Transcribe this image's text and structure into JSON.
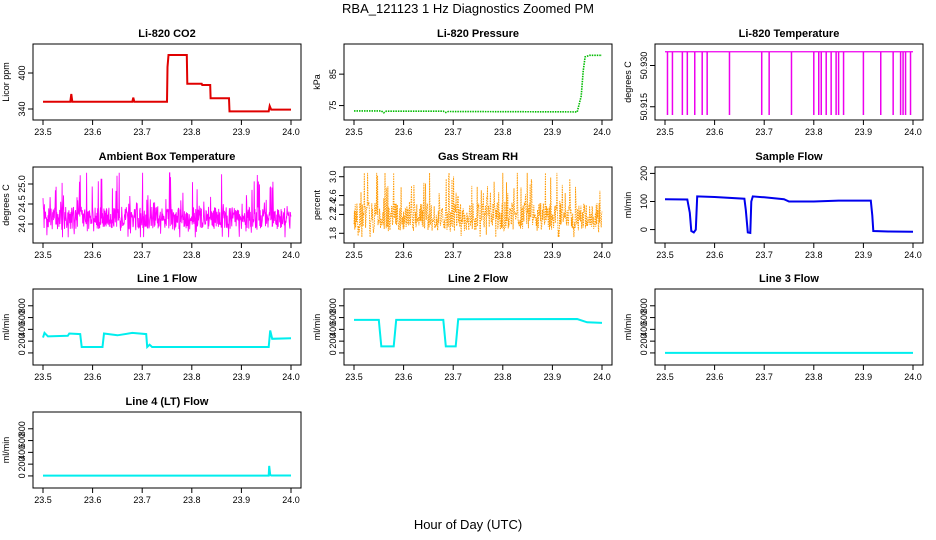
{
  "figure": {
    "title": "RBA_121123  1 Hz Diagnostics Zoomed PM",
    "xlabel": "Hour of Day (UTC)"
  },
  "colors": {
    "co2": "#e00000",
    "pressure": "#00bb00",
    "temperature": "#ee00ee",
    "ambient": "#ff00ff",
    "rh": "#ff9900",
    "sample": "#0000ee",
    "flow": "#00eeee",
    "axis": "#000000"
  },
  "chart_data": [
    {
      "id": "li820-co2",
      "type": "line",
      "title": "Li-820 CO2",
      "ylabel": "Licor ppm",
      "xlim": [
        23.5,
        24.0
      ],
      "ylim": [
        330,
        440
      ],
      "xticks": [
        "23.5",
        "23.6",
        "23.7",
        "23.8",
        "23.9",
        "24.0"
      ],
      "yticks": [
        {
          "v": 340,
          "label": "340"
        },
        {
          "v": 400,
          "label": "400"
        }
      ],
      "color_key": "co2",
      "style": "step",
      "series": [
        {
          "name": "CO2",
          "points": [
            [
              23.5,
              352
            ],
            [
              23.555,
              352
            ],
            [
              23.557,
              365
            ],
            [
              23.559,
              352
            ],
            [
              23.68,
              352
            ],
            [
              23.682,
              359
            ],
            [
              23.684,
              352
            ],
            [
              23.75,
              352
            ],
            [
              23.751,
              410
            ],
            [
              23.753,
              430
            ],
            [
              23.79,
              430
            ],
            [
              23.791,
              382
            ],
            [
              23.82,
              382
            ],
            [
              23.821,
              380
            ],
            [
              23.837,
              380
            ],
            [
              23.838,
              358
            ],
            [
              23.875,
              358
            ],
            [
              23.876,
              336
            ],
            [
              23.955,
              336
            ],
            [
              23.957,
              345
            ],
            [
              23.96,
              339
            ],
            [
              24.0,
              339
            ]
          ]
        }
      ]
    },
    {
      "id": "li820-pressure",
      "type": "line",
      "title": "Li-820 Pressure",
      "ylabel": "kPa",
      "xlim": [
        23.5,
        24.0
      ],
      "ylim": [
        72,
        93
      ],
      "xticks": [
        "23.5",
        "23.6",
        "23.7",
        "23.8",
        "23.9",
        "24.0"
      ],
      "yticks": [
        {
          "v": 75,
          "label": "75"
        },
        {
          "v": 85,
          "label": "85"
        }
      ],
      "color_key": "pressure",
      "style": "dotted",
      "series": [
        {
          "name": "Pressure",
          "points": [
            [
              23.5,
              73.3
            ],
            [
              23.555,
              73.3
            ],
            [
              23.56,
              72.7
            ],
            [
              23.565,
              73.2
            ],
            [
              23.68,
              73.2
            ],
            [
              23.685,
              72.8
            ],
            [
              23.69,
              73.1
            ],
            [
              23.95,
              73.0
            ],
            [
              23.958,
              78
            ],
            [
              23.962,
              86
            ],
            [
              23.966,
              90.5
            ],
            [
              23.975,
              91.0
            ],
            [
              24.0,
              91.0
            ]
          ]
        }
      ]
    },
    {
      "id": "li820-temperature",
      "type": "line",
      "title": "Li-820 Temperature",
      "ylabel": "degrees C",
      "xlim": [
        23.5,
        24.0
      ],
      "ylim": [
        50.912,
        50.936
      ],
      "xticks": [
        "23.5",
        "23.6",
        "23.7",
        "23.8",
        "23.9",
        "24.0"
      ],
      "yticks": [
        {
          "v": 50.915,
          "label": "50.915"
        },
        {
          "v": 50.93,
          "label": "50.930"
        }
      ],
      "color_key": "temperature",
      "style": "spikes",
      "baseline": 50.935,
      "dip": 50.912,
      "spikes": [
        23.505,
        23.515,
        23.535,
        23.545,
        23.56,
        23.575,
        23.585,
        23.63,
        23.695,
        23.71,
        23.755,
        23.8,
        23.81,
        23.815,
        23.825,
        23.835,
        23.845,
        23.85,
        23.86,
        23.9,
        23.935,
        23.96,
        23.975,
        23.98,
        23.985,
        23.995
      ],
      "series": []
    },
    {
      "id": "ambient-box-temperature",
      "type": "line",
      "title": "Ambient Box Temperature",
      "ylabel": "degrees C",
      "xlim": [
        23.5,
        24.0
      ],
      "ylim": [
        23.65,
        25.3
      ],
      "xticks": [
        "23.5",
        "23.6",
        "23.7",
        "23.8",
        "23.9",
        "24.0"
      ],
      "yticks": [
        {
          "v": 24.0,
          "label": "24.0"
        },
        {
          "v": 24.5,
          "label": "24.5"
        },
        {
          "v": 25.0,
          "label": "25.0"
        }
      ],
      "color_key": "ambient",
      "style": "noise",
      "noise": {
        "base": 24.15,
        "amp": 0.28,
        "spike": 0.95,
        "seed": 7,
        "n": 700
      },
      "series": []
    },
    {
      "id": "gas-stream-rh",
      "type": "line",
      "title": "Gas Stream RH",
      "ylabel": "percent",
      "xlim": [
        23.5,
        24.0
      ],
      "ylim": [
        1.7,
        3.1
      ],
      "xticks": [
        "23.5",
        "23.6",
        "23.7",
        "23.8",
        "23.9",
        "24.0"
      ],
      "yticks": [
        {
          "v": 1.8,
          "label": "1.8"
        },
        {
          "v": 2.2,
          "label": "2.2"
        },
        {
          "v": 2.4,
          "label": "2.4"
        },
        {
          "v": 2.6,
          "label": "2.6"
        },
        {
          "v": 3.0,
          "label": "3.0"
        }
      ],
      "color_key": "rh",
      "style": "noise",
      "noise": {
        "base": 2.15,
        "amp": 0.3,
        "spike": 0.85,
        "seed": 13,
        "n": 600
      },
      "series": []
    },
    {
      "id": "sample-flow",
      "type": "line",
      "title": "Sample Flow",
      "ylabel": "ml/min",
      "xlim": [
        23.5,
        24.0
      ],
      "ylim": [
        -30,
        205
      ],
      "xticks": [
        "23.5",
        "23.6",
        "23.7",
        "23.8",
        "23.9",
        "24.0"
      ],
      "yticks": [
        {
          "v": 0,
          "label": "0"
        },
        {
          "v": 100,
          "label": "100"
        },
        {
          "v": 200,
          "label": "200"
        }
      ],
      "color_key": "sample",
      "style": "step",
      "series": [
        {
          "name": "Sample",
          "points": [
            [
              23.5,
              108
            ],
            [
              23.545,
              107
            ],
            [
              23.55,
              60
            ],
            [
              23.553,
              -5
            ],
            [
              23.558,
              -10
            ],
            [
              23.562,
              0
            ],
            [
              23.565,
              118
            ],
            [
              23.6,
              116
            ],
            [
              23.66,
              110
            ],
            [
              23.663,
              70
            ],
            [
              23.667,
              -10
            ],
            [
              23.672,
              -12
            ],
            [
              23.674,
              100
            ],
            [
              23.677,
              118
            ],
            [
              23.7,
              115
            ],
            [
              23.74,
              108
            ],
            [
              23.75,
              100
            ],
            [
              23.8,
              100
            ],
            [
              23.85,
              103
            ],
            [
              23.915,
              103
            ],
            [
              23.918,
              50
            ],
            [
              23.92,
              -5
            ],
            [
              23.95,
              -7
            ],
            [
              24.0,
              -8
            ]
          ]
        }
      ]
    },
    {
      "id": "line-1-flow",
      "type": "line",
      "title": "Line 1 Flow",
      "ylabel": "ml/min",
      "xlim": [
        23.5,
        24.0
      ],
      "ylim": [
        -120,
        1000
      ],
      "xticks": [
        "23.5",
        "23.6",
        "23.7",
        "23.8",
        "23.9",
        "24.0"
      ],
      "yticks": [
        {
          "v": 0,
          "label": "0"
        },
        {
          "v": 200,
          "label": "200"
        },
        {
          "v": 400,
          "label": "400"
        },
        {
          "v": 600,
          "label": "600"
        },
        {
          "v": 800,
          "label": "800"
        }
      ],
      "color_key": "flow",
      "style": "step",
      "series": [
        {
          "name": "Line 1",
          "points": [
            [
              23.5,
              260
            ],
            [
              23.503,
              340
            ],
            [
              23.51,
              280
            ],
            [
              23.55,
              290
            ],
            [
              23.553,
              330
            ],
            [
              23.575,
              320
            ],
            [
              23.578,
              100
            ],
            [
              23.62,
              100
            ],
            [
              23.623,
              330
            ],
            [
              23.65,
              300
            ],
            [
              23.68,
              340
            ],
            [
              23.708,
              320
            ],
            [
              23.71,
              100
            ],
            [
              23.715,
              140
            ],
            [
              23.72,
              100
            ],
            [
              23.955,
              100
            ],
            [
              23.958,
              380
            ],
            [
              23.962,
              240
            ],
            [
              24.0,
              250
            ]
          ]
        }
      ]
    },
    {
      "id": "line-2-flow",
      "type": "line",
      "title": "Line 2 Flow",
      "ylabel": "ml/min",
      "xlim": [
        23.5,
        24.0
      ],
      "ylim": [
        -120,
        1000
      ],
      "xticks": [
        "23.5",
        "23.6",
        "23.7",
        "23.8",
        "23.9",
        "24.0"
      ],
      "yticks": [
        {
          "v": 0,
          "label": "0"
        },
        {
          "v": 200,
          "label": "200"
        },
        {
          "v": 400,
          "label": "400"
        },
        {
          "v": 600,
          "label": "600"
        },
        {
          "v": 800,
          "label": "800"
        }
      ],
      "color_key": "flow",
      "style": "step",
      "series": [
        {
          "name": "Line 2",
          "points": [
            [
              23.5,
              560
            ],
            [
              23.55,
              560
            ],
            [
              23.555,
              110
            ],
            [
              23.58,
              110
            ],
            [
              23.585,
              560
            ],
            [
              23.68,
              560
            ],
            [
              23.685,
              110
            ],
            [
              23.705,
              110
            ],
            [
              23.71,
              570
            ],
            [
              23.95,
              575
            ],
            [
              23.97,
              520
            ],
            [
              24.0,
              510
            ]
          ]
        }
      ]
    },
    {
      "id": "line-3-flow",
      "type": "line",
      "title": "Line 3 Flow",
      "ylabel": "ml/min",
      "xlim": [
        23.5,
        24.0
      ],
      "ylim": [
        -120,
        1000
      ],
      "xticks": [
        "23.5",
        "23.6",
        "23.7",
        "23.8",
        "23.9",
        "24.0"
      ],
      "yticks": [
        {
          "v": 0,
          "label": "0"
        },
        {
          "v": 200,
          "label": "200"
        },
        {
          "v": 400,
          "label": "400"
        },
        {
          "v": 600,
          "label": "600"
        },
        {
          "v": 800,
          "label": "800"
        }
      ],
      "color_key": "flow",
      "style": "step",
      "series": [
        {
          "name": "Line 3",
          "points": [
            [
              23.5,
              0
            ],
            [
              24.0,
              0
            ]
          ]
        }
      ]
    },
    {
      "id": "line-4-lt-flow",
      "type": "line",
      "title": "Line 4 (LT) Flow",
      "ylabel": "ml/min",
      "xlim": [
        23.5,
        24.0
      ],
      "ylim": [
        -120,
        1000
      ],
      "xticks": [
        "23.5",
        "23.6",
        "23.7",
        "23.8",
        "23.9",
        "24.0"
      ],
      "yticks": [
        {
          "v": 0,
          "label": "0"
        },
        {
          "v": 200,
          "label": "200"
        },
        {
          "v": 400,
          "label": "400"
        },
        {
          "v": 600,
          "label": "600"
        },
        {
          "v": 800,
          "label": "800"
        }
      ],
      "color_key": "flow",
      "style": "step",
      "series": [
        {
          "name": "Line 4",
          "points": [
            [
              23.5,
              5
            ],
            [
              23.955,
              5
            ],
            [
              23.956,
              170
            ],
            [
              23.958,
              20
            ],
            [
              23.96,
              8
            ],
            [
              24.0,
              8
            ]
          ]
        }
      ]
    }
  ]
}
